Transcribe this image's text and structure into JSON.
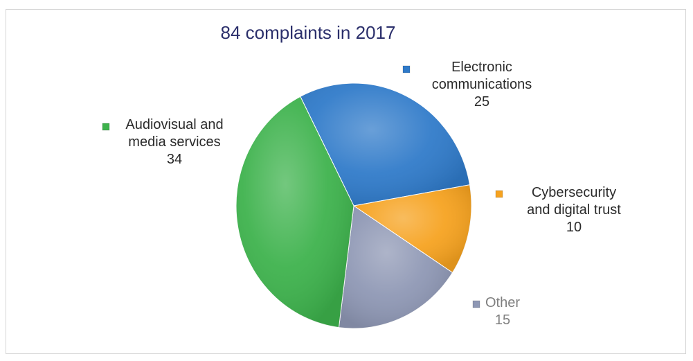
{
  "chart_data": {
    "type": "pie",
    "title": "84 complaints in 2017",
    "slices": [
      {
        "name": "Electronic communications",
        "label_lines": [
          "Electronic",
          "communications"
        ],
        "value": 25,
        "color": "#2f7ac9",
        "label_color": "#2a2a2a"
      },
      {
        "name": "Cybersecurity and digital trust",
        "label_lines": [
          "Cybersecurity",
          "and digital trust"
        ],
        "value": 10,
        "color": "#f6a21f",
        "label_color": "#2a2a2a"
      },
      {
        "name": "Other",
        "label_lines": [
          "Other"
        ],
        "value": 15,
        "color": "#8e97b4",
        "label_color": "#7f7f7f"
      },
      {
        "name": "Audiovisual and media services",
        "label_lines": [
          "Audiovisual and",
          "media services"
        ],
        "value": 34,
        "color": "#3db24c",
        "label_color": "#2a2a2a"
      }
    ],
    "legend": "none",
    "data_labels": "category name and value"
  }
}
